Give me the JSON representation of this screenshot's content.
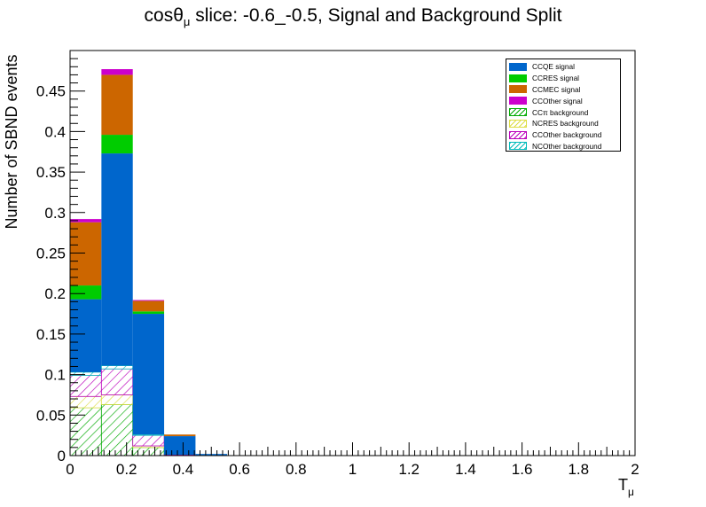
{
  "chart_data": {
    "type": "bar",
    "stacked": true,
    "title_main": "cosθ",
    "title_sub": "μ",
    "title_rest": " slice: -0.6_-0.5, Signal and Background Split",
    "ylabel": "Number of SBND events",
    "xlabel_main": "T",
    "xlabel_sub": "μ",
    "xlim": [
      0,
      2
    ],
    "ylim": [
      0,
      0.5
    ],
    "xticks": [
      "0",
      "0.2",
      "0.4",
      "0.6",
      "0.8",
      "1",
      "1.2",
      "1.4",
      "1.6",
      "1.8",
      "2"
    ],
    "yticks": [
      "0",
      "0.05",
      "0.1",
      "0.15",
      "0.2",
      "0.25",
      "0.3",
      "0.35",
      "0.4",
      "0.45"
    ],
    "legend_position": "top-right",
    "bin_edges": [
      0,
      0.111,
      0.222,
      0.333,
      0.444,
      0.556
    ],
    "series": [
      {
        "name": "CCπ background",
        "color": "#00aa00",
        "fill": "hatch",
        "values": [
          0.059,
          0.063,
          0.01,
          0.0,
          0.0
        ]
      },
      {
        "name": "NCRES background",
        "color": "#dddd44",
        "fill": "hatch",
        "values": [
          0.014,
          0.012,
          0.002,
          0.0,
          0.0
        ]
      },
      {
        "name": "CCOther background",
        "color": "#bb00bb",
        "fill": "hatch",
        "values": [
          0.026,
          0.032,
          0.013,
          0.001,
          0.0
        ]
      },
      {
        "name": "NCOther background",
        "color": "#00bbbb",
        "fill": "hatch",
        "values": [
          0.004,
          0.004,
          0.001,
          0.0,
          0.0
        ]
      },
      {
        "name": "CCQE signal",
        "color": "#0066cc",
        "fill": "solid",
        "values": [
          0.09,
          0.262,
          0.149,
          0.023,
          0.002
        ]
      },
      {
        "name": "CCRES signal",
        "color": "#00cc00",
        "fill": "solid",
        "values": [
          0.017,
          0.023,
          0.003,
          0.0,
          0.0
        ]
      },
      {
        "name": "CCMEC signal",
        "color": "#cc6600",
        "fill": "solid",
        "values": [
          0.078,
          0.074,
          0.013,
          0.002,
          0.0
        ]
      },
      {
        "name": "CCOther signal",
        "color": "#cc00cc",
        "fill": "solid",
        "values": [
          0.004,
          0.007,
          0.001,
          0.0,
          0.0
        ]
      }
    ],
    "legend_order": [
      "CCQE signal",
      "CCRES signal",
      "CCMEC signal",
      "CCOther signal",
      "CCπ background",
      "NCRES background",
      "CCOther background",
      "NCOther background"
    ]
  }
}
